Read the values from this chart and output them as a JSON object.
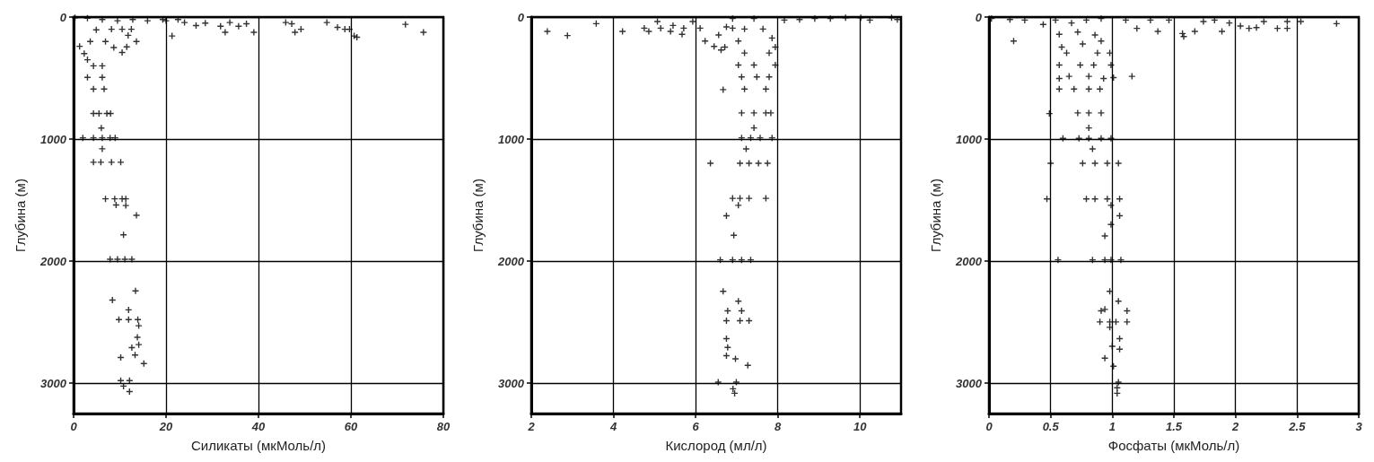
{
  "chart_data": [
    {
      "type": "scatter",
      "xlabel": "Силикаты (мкМоль/л)",
      "ylabel": "Глубина (м)",
      "xlim": [
        0,
        80
      ],
      "xticks": [
        0,
        20,
        40,
        60,
        80
      ],
      "ylim": [
        3250,
        0
      ],
      "yticks": [
        0,
        1000,
        2000,
        3000
      ],
      "grid": true,
      "marker": "cross",
      "series": [
        {
          "color": "#000000",
          "x": [
            0.3,
            3,
            6.2,
            9.5,
            12.8,
            16,
            19.3,
            20,
            22.6,
            8.2,
            10.5,
            12.5,
            11.8,
            13.6,
            1.3,
            8.7,
            10.5,
            11.5,
            21.3,
            24,
            26.5,
            28.5,
            31.8,
            32.8,
            33.8,
            35.7,
            37.4,
            39,
            45.9,
            47.2,
            47.9,
            49.2,
            54.8,
            57.1,
            58.7,
            59.7,
            60.7,
            61.3,
            71.8,
            75.7,
            4.9,
            3.6,
            6.9,
            2.3,
            3,
            4.3,
            6.2,
            3,
            6.2,
            4.3,
            6.6,
            4.3,
            5.5,
            7.2,
            8,
            6,
            2,
            4.3,
            6.2,
            7.9,
            9,
            6.2,
            4.3,
            5.9,
            8.2,
            10.2,
            6.9,
            8.9,
            10.5,
            11.3,
            9.2,
            11.3,
            13.6,
            10.8,
            7.9,
            9.5,
            11.1,
            12.6,
            13.4,
            8.4,
            11.9,
            9.8,
            11.9,
            13.9,
            14.1,
            13.8,
            14.1,
            12.6,
            13.3,
            10.2,
            15.2,
            10.2,
            12.1,
            10.8,
            12.1
          ],
          "values": [
            5,
            10,
            20,
            30,
            20,
            30,
            20,
            30,
            20,
            100,
            100,
            100,
            150,
            200,
            240,
            250,
            290,
            245,
            155,
            45,
            70,
            50,
            75,
            125,
            45,
            75,
            55,
            125,
            45,
            55,
            125,
            100,
            45,
            85,
            100,
            100,
            155,
            165,
            60,
            125,
            105,
            200,
            200,
            300,
            350,
            400,
            400,
            495,
            495,
            590,
            590,
            790,
            790,
            790,
            790,
            910,
            990,
            990,
            990,
            990,
            990,
            1080,
            1190,
            1190,
            1190,
            1190,
            1490,
            1490,
            1490,
            1490,
            1540,
            1545,
            1625,
            1785,
            1985,
            1985,
            1985,
            1985,
            2245,
            2320,
            2400,
            2480,
            2480,
            2480,
            2530,
            2625,
            2685,
            2710,
            2770,
            2790,
            2840,
            2980,
            2980,
            3025,
            3070
          ]
        }
      ]
    },
    {
      "type": "scatter",
      "xlabel": "Кислород (мл/л)",
      "ylabel": "Глубина (м)",
      "xlim": [
        2,
        11
      ],
      "xticks": [
        2,
        4,
        6,
        8,
        10
      ],
      "ylim": [
        3250,
        0
      ],
      "yticks": [
        0,
        1000,
        2000,
        3000
      ],
      "grid": true,
      "marker": "cross",
      "series": [
        {
          "color": "#000000",
          "x": [
            2.39,
            2.88,
            3.58,
            4.22,
            4.75,
            4.86,
            5.07,
            5.15,
            5.39,
            5.45,
            5.67,
            5.71,
            5.93,
            6.11,
            6.23,
            6.45,
            6.56,
            6.62,
            6.71,
            6.67,
            6.75,
            6.9,
            6.9,
            7.42,
            8.16,
            8.53,
            8.9,
            9.28,
            9.65,
            10.02,
            10.24,
            10.77,
            10.91,
            7.19,
            7.64,
            7.86,
            7.04,
            7.94,
            7.19,
            7.79,
            7.04,
            7.94,
            7.42,
            7.12,
            7.49,
            7.79,
            7.19,
            7.71,
            7.12,
            7.42,
            7.71,
            7.83,
            7.42,
            7.12,
            7.34,
            7.57,
            7.86,
            7.23,
            6.36,
            7.08,
            7.3,
            7.53,
            7.75,
            6.9,
            7.08,
            7.3,
            7.71,
            7.04,
            6.75,
            6.93,
            6.6,
            6.9,
            7.12,
            7.34,
            6.67,
            7.04,
            6.78,
            7.12,
            6.75,
            7.08,
            7.3,
            6.75,
            6.78,
            6.75,
            6.97,
            7.27,
            6.55,
            6.99,
            6.91,
            6.95
          ],
          "values": [
            118,
            152,
            54,
            118,
            91,
            118,
            37,
            91,
            118,
            69,
            142,
            91,
            37,
            91,
            197,
            241,
            147,
            270,
            246,
            595,
            81,
            91,
            12,
            12,
            25,
            20,
            12,
            12,
            5,
            5,
            25,
            5,
            20,
            98,
            98,
            172,
            197,
            246,
            295,
            295,
            393,
            393,
            393,
            491,
            491,
            491,
            590,
            590,
            786,
            786,
            786,
            786,
            909,
            990,
            990,
            990,
            990,
            1081,
            1199,
            1199,
            1199,
            1199,
            1199,
            1486,
            1486,
            1486,
            1486,
            1543,
            1629,
            1789,
            1990,
            1990,
            1990,
            1990,
            2248,
            2329,
            2408,
            2408,
            2489,
            2489,
            2489,
            2636,
            2708,
            2776,
            2801,
            2855,
            2993,
            2993,
            3047,
            3084
          ]
        }
      ]
    },
    {
      "type": "scatter",
      "xlabel": "Фосфаты (мкМоль/л)",
      "ylabel": "Глубина (м)",
      "xlim": [
        0,
        3
      ],
      "xticks": [
        0,
        0.5,
        1,
        1.5,
        2,
        2.5,
        3
      ],
      "ylim": [
        3250,
        0
      ],
      "yticks": [
        0,
        1000,
        2000,
        3000
      ],
      "grid": true,
      "marker": "cross",
      "series": [
        {
          "color": "#000000",
          "x": [
            0.02,
            0.17,
            0.29,
            0.2,
            0.44,
            0.54,
            0.67,
            0.79,
            0.91,
            1.11,
            1.2,
            1.31,
            1.37,
            1.46,
            1.57,
            1.58,
            1.67,
            1.74,
            1.83,
            1.89,
            1.95,
            2.04,
            2.11,
            2.17,
            2.23,
            2.34,
            2.42,
            2.42,
            2.53,
            2.82,
            0.57,
            0.72,
            0.86,
            0.59,
            0.76,
            0.91,
            0.63,
            0.88,
            0.98,
            0.57,
            0.74,
            0.85,
            0.99,
            0.57,
            0.65,
            0.81,
            0.93,
            1.01,
            1.16,
            0.57,
            0.69,
            0.81,
            0.9,
            0.49,
            0.72,
            0.81,
            0.91,
            0.81,
            0.6,
            0.73,
            0.81,
            0.91,
            0.99,
            0.84,
            0.5,
            0.76,
            0.86,
            0.96,
            1.05,
            0.47,
            0.79,
            0.86,
            0.96,
            1.06,
            0.99,
            1.06,
            0.99,
            0.94,
            0.56,
            0.84,
            0.94,
            0.99,
            1.07,
            0.98,
            1.05,
            0.91,
            0.94,
            1.12,
            0.9,
            0.98,
            1.03,
            1.12,
            0.98,
            1.06,
            1,
            1.06,
            0.94,
            1.01,
            1.05,
            1.04,
            1.04
          ],
          "values": [
            12,
            20,
            25,
            197,
            61,
            25,
            49,
            25,
            12,
            25,
            93,
            25,
            118,
            25,
            135,
            160,
            118,
            37,
            25,
            118,
            49,
            74,
            93,
            86,
            37,
            93,
            93,
            37,
            37,
            54,
            142,
            123,
            147,
            246,
            221,
            197,
            295,
            295,
            295,
            393,
            393,
            393,
            393,
            504,
            486,
            486,
            504,
            496,
            486,
            590,
            590,
            590,
            590,
            791,
            786,
            786,
            786,
            909,
            995,
            995,
            995,
            995,
            995,
            1081,
            1199,
            1199,
            1199,
            1199,
            1199,
            1491,
            1491,
            1491,
            1491,
            1491,
            1543,
            1629,
            1700,
            1794,
            1990,
            1990,
            1990,
            1990,
            1990,
            2248,
            2329,
            2408,
            2396,
            2408,
            2499,
            2499,
            2499,
            2499,
            2543,
            2636,
            2698,
            2722,
            2796,
            2862,
            2993,
            3039,
            3084
          ]
        }
      ]
    }
  ]
}
